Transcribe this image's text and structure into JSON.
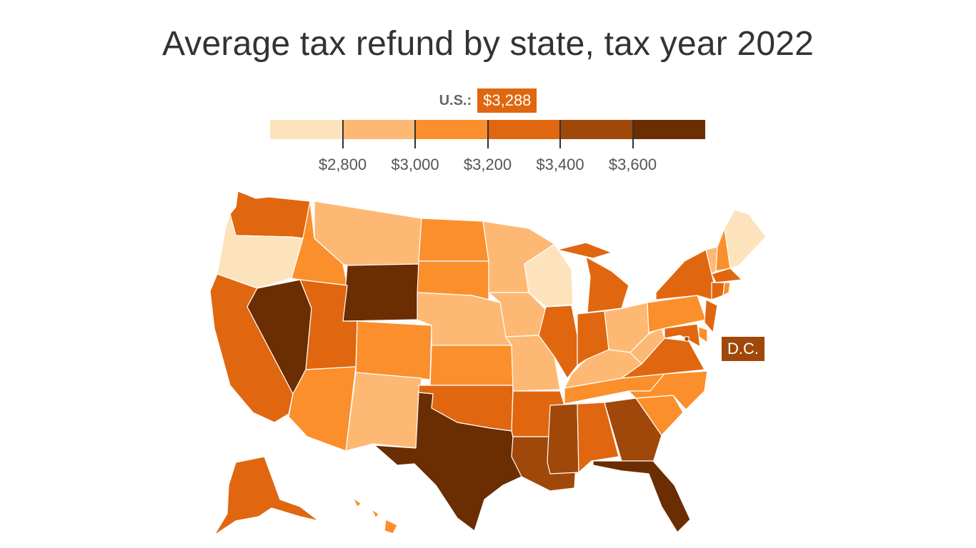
{
  "title": "Average tax refund by state, tax year 2022",
  "us_average": {
    "label": "U.S.:",
    "value": "$3,288"
  },
  "legend": {
    "bins": [
      {
        "color": "#fde3bc",
        "range": "< $2,800"
      },
      {
        "color": "#fdb974",
        "range": "$2,800–$3,000"
      },
      {
        "color": "#fb8f2c",
        "range": "$3,000–$3,200"
      },
      {
        "color": "#e0670f",
        "range": "$3,200–$3,400"
      },
      {
        "color": "#a0480a",
        "range": "$3,400–$3,600"
      },
      {
        "color": "#6b2d02",
        "range": "> $3,600"
      }
    ],
    "tick_labels": [
      "$2,800",
      "$3,000",
      "$3,200",
      "$3,400",
      "$3,600"
    ]
  },
  "dc_label": "D.C.",
  "states": [
    {
      "id": "WA",
      "bin": 3
    },
    {
      "id": "OR",
      "bin": 0
    },
    {
      "id": "CA",
      "bin": 3
    },
    {
      "id": "NV",
      "bin": 5
    },
    {
      "id": "ID",
      "bin": 2
    },
    {
      "id": "MT",
      "bin": 1
    },
    {
      "id": "WY",
      "bin": 5
    },
    {
      "id": "UT",
      "bin": 3
    },
    {
      "id": "AZ",
      "bin": 2
    },
    {
      "id": "CO",
      "bin": 2
    },
    {
      "id": "NM",
      "bin": 1
    },
    {
      "id": "ND",
      "bin": 2
    },
    {
      "id": "SD",
      "bin": 2
    },
    {
      "id": "NE",
      "bin": 1
    },
    {
      "id": "KS",
      "bin": 2
    },
    {
      "id": "OK",
      "bin": 3
    },
    {
      "id": "TX",
      "bin": 5
    },
    {
      "id": "MN",
      "bin": 1
    },
    {
      "id": "IA",
      "bin": 1
    },
    {
      "id": "MO",
      "bin": 1
    },
    {
      "id": "AR",
      "bin": 3
    },
    {
      "id": "LA",
      "bin": 4
    },
    {
      "id": "WI",
      "bin": 0
    },
    {
      "id": "IL",
      "bin": 3
    },
    {
      "id": "MI",
      "bin": 3
    },
    {
      "id": "IN",
      "bin": 3
    },
    {
      "id": "OH",
      "bin": 1
    },
    {
      "id": "KY",
      "bin": 1
    },
    {
      "id": "TN",
      "bin": 2
    },
    {
      "id": "MS",
      "bin": 4
    },
    {
      "id": "AL",
      "bin": 3
    },
    {
      "id": "GA",
      "bin": 4
    },
    {
      "id": "FL",
      "bin": 5
    },
    {
      "id": "SC",
      "bin": 2
    },
    {
      "id": "NC",
      "bin": 2
    },
    {
      "id": "VA",
      "bin": 3
    },
    {
      "id": "WV",
      "bin": 1
    },
    {
      "id": "PA",
      "bin": 2
    },
    {
      "id": "NY",
      "bin": 3
    },
    {
      "id": "VT",
      "bin": 1
    },
    {
      "id": "NH",
      "bin": 2
    },
    {
      "id": "ME",
      "bin": 0
    },
    {
      "id": "MA",
      "bin": 3
    },
    {
      "id": "CT",
      "bin": 3
    },
    {
      "id": "RI",
      "bin": 2
    },
    {
      "id": "NJ",
      "bin": 3
    },
    {
      "id": "DE",
      "bin": 2
    },
    {
      "id": "MD",
      "bin": 3
    },
    {
      "id": "DC",
      "bin": 4
    },
    {
      "id": "AK",
      "bin": 3
    },
    {
      "id": "HI",
      "bin": 2
    }
  ]
}
